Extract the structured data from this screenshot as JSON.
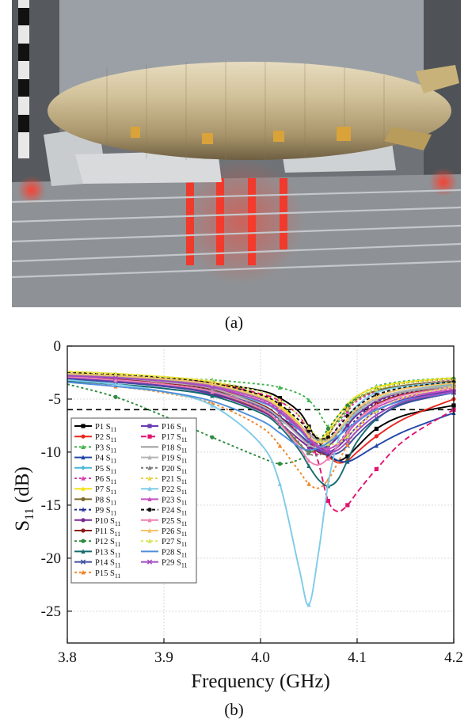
{
  "captions": {
    "a": "(a)",
    "b": "(b)"
  },
  "photo": {
    "subject": "airship model on wire rack inside test chamber"
  },
  "chart_data": {
    "type": "line",
    "xlabel": "Frequency (GHz)",
    "ylabel": "S11 (dB)",
    "ylabel_main": "S",
    "ylabel_sub": "11",
    "ylabel_unit": " (dB)",
    "xlim": [
      3.8,
      4.2
    ],
    "ylim": [
      -28,
      0
    ],
    "xticks": [
      3.8,
      3.9,
      4.0,
      4.1,
      4.2
    ],
    "xtick_labels": [
      "3.8",
      "3.9",
      "4.0",
      "4.1",
      "4.2"
    ],
    "yticks": [
      0,
      -5,
      -10,
      -15,
      -20,
      -25
    ],
    "ytick_labels": [
      "0",
      "-5",
      "-10",
      "-15",
      "-20",
      "-25"
    ],
    "grid": true,
    "reference_line": {
      "y": -6,
      "style": "dashed",
      "color": "#000000"
    },
    "legend_suffix": "S11",
    "legend_position": "lower-left inside",
    "x": [
      3.8,
      3.85,
      3.9,
      3.95,
      4.0,
      4.02,
      4.04,
      4.05,
      4.06,
      4.07,
      4.08,
      4.09,
      4.1,
      4.12,
      4.15,
      4.2
    ],
    "series": [
      {
        "name": "P1",
        "color": "#000000",
        "marker": "square",
        "dash": "",
        "values": [
          -2.6,
          -2.8,
          -3.1,
          -3.5,
          -4.2,
          -4.9,
          -6.2,
          -7.6,
          -9.0,
          -10.2,
          -10.8,
          -10.4,
          -9.5,
          -7.8,
          -6.5,
          -5.6
        ]
      },
      {
        "name": "P2",
        "color": "#e8271f",
        "marker": "circle",
        "dash": "",
        "values": [
          -2.9,
          -3.1,
          -3.4,
          -4.0,
          -5.2,
          -6.3,
          -7.6,
          -8.6,
          -9.5,
          -10.4,
          -11.0,
          -10.8,
          -10.0,
          -8.5,
          -6.8,
          -5.0
        ]
      },
      {
        "name": "P3",
        "color": "#3fb24b",
        "marker": "triangle",
        "dash": "3,3",
        "values": [
          -2.7,
          -2.8,
          -3.0,
          -3.2,
          -3.6,
          -3.9,
          -4.5,
          -5.1,
          -6.2,
          -7.6,
          -7.2,
          -6.0,
          -4.8,
          -3.8,
          -3.3,
          -3.0
        ]
      },
      {
        "name": "P4",
        "color": "#2247a8",
        "marker": "triangle",
        "dash": "",
        "values": [
          -3.3,
          -3.6,
          -4.0,
          -4.6,
          -5.8,
          -6.7,
          -7.9,
          -8.6,
          -9.4,
          -10.2,
          -10.8,
          -10.9,
          -10.5,
          -9.4,
          -8.0,
          -6.3
        ]
      },
      {
        "name": "P5",
        "color": "#4ab7d9",
        "marker": "diamond",
        "dash": "",
        "values": [
          -3.2,
          -3.4,
          -3.7,
          -4.2,
          -5.3,
          -6.3,
          -7.9,
          -8.9,
          -9.5,
          -9.4,
          -8.6,
          -7.4,
          -6.3,
          -5.0,
          -4.2,
          -3.6
        ]
      },
      {
        "name": "P6",
        "color": "#d63fb0",
        "marker": "triangle",
        "dash": "3,3",
        "values": [
          -2.5,
          -2.7,
          -3.0,
          -3.6,
          -5.0,
          -6.2,
          -8.3,
          -9.6,
          -10.2,
          -9.2,
          -7.6,
          -6.2,
          -5.2,
          -4.3,
          -3.7,
          -3.2
        ]
      },
      {
        "name": "P7",
        "color": "#f2e21c",
        "marker": "triangle",
        "dash": "",
        "values": [
          -2.4,
          -2.6,
          -2.9,
          -3.4,
          -4.6,
          -5.6,
          -7.3,
          -8.5,
          -9.0,
          -8.0,
          -6.6,
          -5.5,
          -4.7,
          -3.9,
          -3.4,
          -3.0
        ]
      },
      {
        "name": "P8",
        "color": "#7d6a2a",
        "marker": "circle",
        "dash": "",
        "values": [
          -3.0,
          -3.3,
          -3.7,
          -4.4,
          -6.0,
          -7.3,
          -9.2,
          -10.0,
          -9.6,
          -8.4,
          -7.0,
          -5.9,
          -5.0,
          -4.2,
          -3.7,
          -3.3
        ]
      },
      {
        "name": "P9",
        "color": "#1d2a8c",
        "marker": "star",
        "dash": "3,3",
        "values": [
          -2.8,
          -3.0,
          -3.3,
          -3.8,
          -5.0,
          -6.0,
          -7.5,
          -8.5,
          -9.3,
          -9.7,
          -9.2,
          -8.0,
          -6.8,
          -5.3,
          -4.4,
          -3.8
        ]
      },
      {
        "name": "P10",
        "color": "#7a2890",
        "marker": "circle",
        "dash": "",
        "values": [
          -3.1,
          -3.4,
          -3.8,
          -4.5,
          -6.1,
          -7.3,
          -8.8,
          -9.5,
          -9.8,
          -9.4,
          -8.6,
          -7.5,
          -6.5,
          -5.2,
          -4.3,
          -3.7
        ]
      },
      {
        "name": "P11",
        "color": "#8a1a1a",
        "marker": "circle",
        "dash": "",
        "values": [
          -2.9,
          -3.1,
          -3.5,
          -4.1,
          -5.5,
          -6.7,
          -8.3,
          -9.3,
          -10.0,
          -10.2,
          -9.5,
          -8.2,
          -7.0,
          -5.5,
          -4.5,
          -3.9
        ]
      },
      {
        "name": "P12",
        "color": "#2e8a3e",
        "marker": "circle",
        "dash": "3,3",
        "values": [
          -3.6,
          -4.8,
          -6.6,
          -8.6,
          -10.5,
          -11.1,
          -10.7,
          -10.0,
          -9.0,
          -7.8,
          -6.6,
          -5.6,
          -4.9,
          -4.1,
          -3.5,
          -3.1
        ]
      },
      {
        "name": "P13",
        "color": "#176b6e",
        "marker": "triangle",
        "dash": "",
        "values": [
          -3.3,
          -3.6,
          -4.0,
          -4.7,
          -6.3,
          -7.6,
          -9.8,
          -11.3,
          -12.6,
          -13.2,
          -12.6,
          -10.8,
          -9.0,
          -6.9,
          -5.3,
          -4.3
        ]
      },
      {
        "name": "P14",
        "color": "#3d4fa0",
        "marker": "x",
        "dash": "",
        "values": [
          -3.1,
          -3.4,
          -3.8,
          -4.4,
          -5.8,
          -6.9,
          -8.3,
          -9.1,
          -9.8,
          -10.2,
          -10.1,
          -9.4,
          -8.4,
          -6.8,
          -5.4,
          -4.4
        ]
      },
      {
        "name": "P15",
        "color": "#f0862a",
        "marker": "triangle",
        "dash": "3,3",
        "values": [
          -3.4,
          -3.8,
          -4.4,
          -5.4,
          -7.6,
          -9.4,
          -11.8,
          -13.0,
          -13.4,
          -12.6,
          -11.0,
          -9.3,
          -7.9,
          -6.1,
          -4.9,
          -4.0
        ]
      },
      {
        "name": "P16",
        "color": "#6a3bb0",
        "marker": "square",
        "dash": "",
        "values": [
          -3.0,
          -3.3,
          -3.7,
          -4.3,
          -5.7,
          -6.8,
          -8.4,
          -9.3,
          -9.9,
          -10.0,
          -9.5,
          -8.6,
          -7.6,
          -6.1,
          -5.0,
          -4.2
        ]
      },
      {
        "name": "P17",
        "color": "#e0136f",
        "marker": "square",
        "dash": "7,4",
        "values": [
          -2.6,
          -2.8,
          -3.1,
          -3.5,
          -4.5,
          -5.2,
          -6.6,
          -8.4,
          -11.0,
          -14.6,
          -15.6,
          -15.0,
          -13.8,
          -11.6,
          -8.8,
          -6.0
        ]
      },
      {
        "name": "P18",
        "color": "#9a9a9a",
        "marker": "none",
        "dash": "",
        "values": [
          -2.7,
          -2.9,
          -3.2,
          -3.7,
          -4.9,
          -5.9,
          -7.4,
          -8.3,
          -8.9,
          -8.8,
          -8.0,
          -7.0,
          -6.1,
          -5.0,
          -4.3,
          -3.8
        ]
      },
      {
        "name": "P19",
        "color": "#b4b4b4",
        "marker": "triangle",
        "dash": "",
        "values": [
          -2.8,
          -3.0,
          -3.4,
          -4.0,
          -5.6,
          -6.8,
          -8.5,
          -9.3,
          -9.6,
          -9.1,
          -8.2,
          -7.1,
          -6.2,
          -5.0,
          -4.2,
          -3.7
        ]
      },
      {
        "name": "P20",
        "color": "#7c7c7c",
        "marker": "triangle",
        "dash": "3,3",
        "values": [
          -2.9,
          -3.2,
          -3.6,
          -4.2,
          -5.8,
          -7.1,
          -9.1,
          -10.1,
          -10.3,
          -9.5,
          -8.2,
          -7.0,
          -6.0,
          -4.8,
          -4.0,
          -3.5
        ]
      },
      {
        "name": "P21",
        "color": "#e8d44a",
        "marker": "triangle",
        "dash": "3,3",
        "values": [
          -2.5,
          -2.7,
          -3.0,
          -3.5,
          -4.8,
          -5.9,
          -7.6,
          -8.6,
          -9.0,
          -8.3,
          -7.0,
          -5.9,
          -5.0,
          -4.1,
          -3.5,
          -3.1
        ]
      },
      {
        "name": "P22",
        "color": "#7ecbe8",
        "marker": "triangle",
        "dash": "",
        "values": [
          -3.2,
          -3.6,
          -4.3,
          -5.6,
          -9.2,
          -13.0,
          -21.0,
          -24.4,
          -19.5,
          -13.0,
          -9.0,
          -6.9,
          -5.6,
          -4.4,
          -3.8,
          -3.4
        ]
      },
      {
        "name": "P23",
        "color": "#c64fc0",
        "marker": "triangle",
        "dash": "",
        "values": [
          -2.8,
          -3.0,
          -3.3,
          -3.8,
          -5.0,
          -6.0,
          -7.6,
          -8.6,
          -9.4,
          -9.7,
          -9.2,
          -8.2,
          -7.2,
          -5.8,
          -4.8,
          -4.1
        ]
      },
      {
        "name": "P24",
        "color": "#111111",
        "marker": "circle",
        "dash": "4,3",
        "values": [
          -2.5,
          -2.7,
          -3.0,
          -3.5,
          -4.6,
          -5.5,
          -7.0,
          -8.0,
          -8.7,
          -8.6,
          -7.7,
          -6.6,
          -5.7,
          -4.6,
          -3.9,
          -3.4
        ]
      },
      {
        "name": "P25",
        "color": "#ef7fb4",
        "marker": "triangle",
        "dash": "",
        "values": [
          -2.9,
          -3.2,
          -3.6,
          -4.3,
          -5.9,
          -7.3,
          -9.5,
          -10.8,
          -11.2,
          -10.6,
          -9.4,
          -8.1,
          -7.0,
          -5.6,
          -4.6,
          -3.9
        ]
      },
      {
        "name": "P26",
        "color": "#f2c56a",
        "marker": "triangle",
        "dash": "",
        "values": [
          -2.6,
          -2.8,
          -3.1,
          -3.6,
          -4.8,
          -5.8,
          -7.4,
          -8.5,
          -9.1,
          -8.9,
          -8.0,
          -6.9,
          -5.9,
          -4.8,
          -4.0,
          -3.5
        ]
      },
      {
        "name": "P27",
        "color": "#d9e35a",
        "marker": "triangle",
        "dash": "3,3",
        "values": [
          -2.4,
          -2.6,
          -2.9,
          -3.3,
          -4.3,
          -5.1,
          -6.6,
          -7.7,
          -8.6,
          -9.2,
          -9.2,
          -8.5,
          -7.6,
          -6.1,
          -4.8,
          -3.8
        ]
      },
      {
        "name": "P28",
        "color": "#4f8fdb",
        "marker": "none",
        "dash": "",
        "values": [
          -3.4,
          -3.8,
          -4.3,
          -5.2,
          -7.0,
          -8.2,
          -9.5,
          -9.8,
          -9.6,
          -9.1,
          -8.5,
          -7.8,
          -7.1,
          -6.0,
          -5.1,
          -4.4
        ]
      },
      {
        "name": "P29",
        "color": "#a24bc0",
        "marker": "x",
        "dash": "",
        "values": [
          -2.8,
          -3.0,
          -3.3,
          -3.9,
          -5.2,
          -6.2,
          -7.8,
          -8.8,
          -9.6,
          -10.0,
          -9.8,
          -9.0,
          -8.0,
          -6.5,
          -5.2,
          -4.3
        ]
      }
    ]
  }
}
